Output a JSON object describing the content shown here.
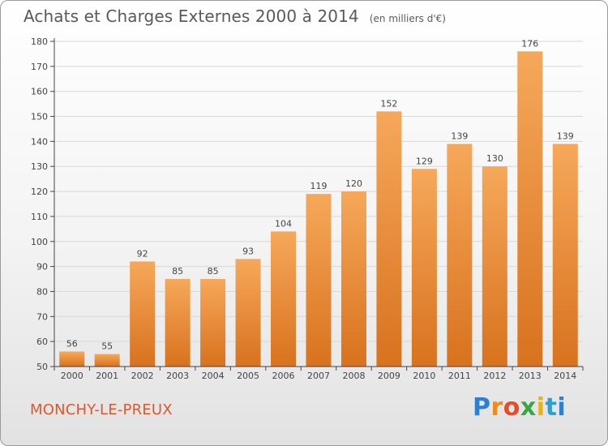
{
  "title": "Achats et Charges Externes 2000 à 2014",
  "unit": "(en milliers d'€)",
  "commune": "MONCHY-LE-PREUX",
  "brand": {
    "text": "Proxiti",
    "colors": [
      "#2e7fd0",
      "#ef8a1c",
      "#e84b2a",
      "#3aa645",
      "#e8b21a",
      "#2e9fd0"
    ]
  },
  "chart_data": {
    "type": "bar",
    "title": "Achats et Charges Externes 2000 à 2014",
    "subtitle": "(en milliers d'€)",
    "xlabel": "",
    "ylabel": "",
    "categories": [
      "2000",
      "2001",
      "2002",
      "2003",
      "2004",
      "2005",
      "2006",
      "2007",
      "2008",
      "2009",
      "2010",
      "2011",
      "2012",
      "2013",
      "2014"
    ],
    "values": [
      56,
      55,
      92,
      85,
      85,
      93,
      104,
      119,
      120,
      152,
      129,
      139,
      130,
      176,
      139
    ],
    "ylim": [
      50,
      180
    ],
    "yticks": [
      50,
      60,
      70,
      80,
      90,
      100,
      110,
      120,
      130,
      140,
      150,
      160,
      170,
      180
    ],
    "grid": true,
    "bar_color": "#f0903a",
    "bar_color_top": "#f6a85a",
    "bar_color_bottom": "#d8721e",
    "grid_color": "#d8d8d8"
  }
}
